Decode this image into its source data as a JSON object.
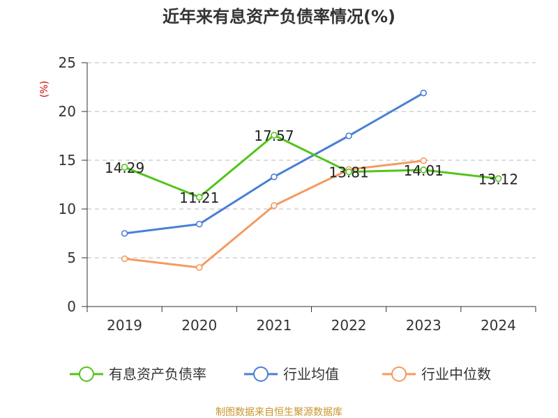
{
  "chart_data": {
    "type": "line",
    "title": "近年来有息资产负债率情况(%)",
    "unit_label": "(%)",
    "categories": [
      "2019",
      "2020",
      "2021",
      "2022",
      "2023",
      "2024"
    ],
    "ylim": [
      0,
      25
    ],
    "yticks": [
      0,
      5,
      10,
      15,
      20,
      25
    ],
    "grid": true,
    "legend_position": "bottom",
    "series": [
      {
        "name": "有息资产负债率",
        "color": "#52c41a",
        "values": [
          14.29,
          11.21,
          17.57,
          13.81,
          14.01,
          13.12
        ],
        "show_labels": true,
        "data_labels": [
          "14.29",
          "11.21",
          "17.57",
          "13.81",
          "14.01",
          "13.12"
        ]
      },
      {
        "name": "行业均值",
        "color": "#4a7fd4",
        "values": [
          7.5,
          8.45,
          13.3,
          17.5,
          21.9,
          null
        ],
        "show_labels": false
      },
      {
        "name": "行业中位数",
        "color": "#f59a5f",
        "values": [
          4.9,
          4.0,
          10.35,
          14.05,
          14.95,
          null
        ],
        "show_labels": false
      }
    ]
  },
  "footer": {
    "source": "制图数据来自恒生聚源数据库"
  }
}
